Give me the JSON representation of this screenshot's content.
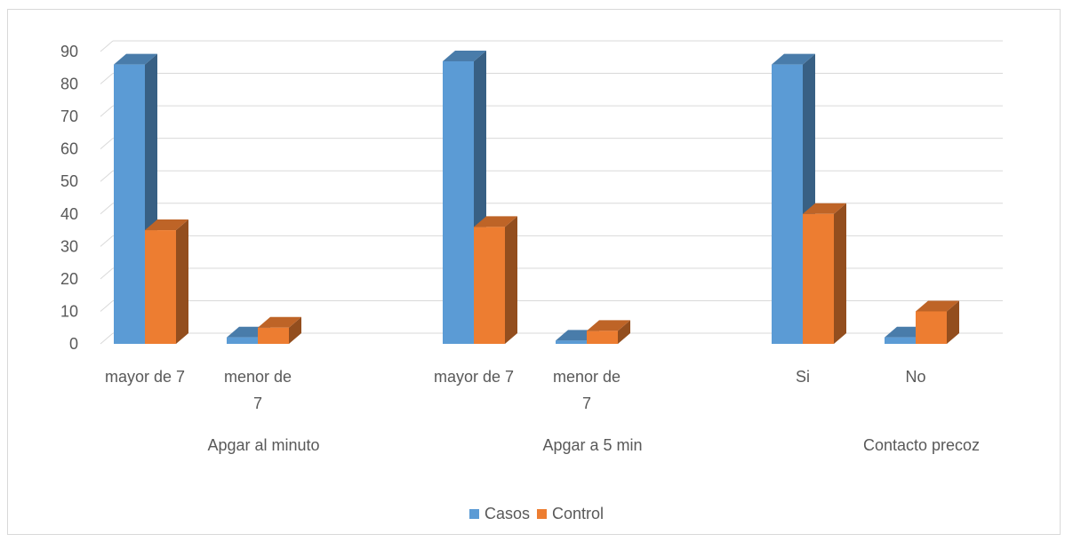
{
  "chart_data": {
    "type": "bar",
    "title": "",
    "ylim": [
      0,
      90
    ],
    "yticks": [
      0,
      10,
      20,
      30,
      40,
      50,
      60,
      70,
      80,
      90
    ],
    "groups": [
      {
        "label": "Apgar al minuto",
        "categories": [
          "mayor de 7",
          "menor de 7"
        ]
      },
      {
        "label": "Apgar a 5 min",
        "categories": [
          "mayor de 7",
          "menor de 7"
        ]
      },
      {
        "label": "Contacto precoz",
        "categories": [
          "Si",
          "No"
        ]
      }
    ],
    "categories": [
      "mayor de 7",
      "menor de 7",
      "mayor de 7",
      "menor de 7",
      "Si",
      "No"
    ],
    "series": [
      {
        "name": "Casos",
        "color": "#5B9BD5",
        "values": [
          86,
          2,
          87,
          1,
          86,
          2
        ]
      },
      {
        "name": "Control",
        "color": "#ED7D31",
        "values": [
          35,
          5,
          36,
          4,
          40,
          10
        ]
      }
    ],
    "grid": true,
    "legend_position": "bottom"
  }
}
